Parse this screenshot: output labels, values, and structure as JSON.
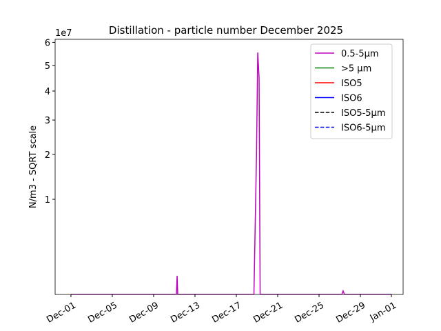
{
  "chart_data": {
    "type": "line",
    "title": "Distillation - particle number December 2025",
    "ylabel": "N/m3 - SQRT scale",
    "y_offset_label": "1e7",
    "yscale": "sqrt",
    "x": [
      0,
      10.2,
      10.27,
      10.33,
      17.7,
      17.95,
      18.07,
      18.2,
      18.3,
      26.2,
      26.33,
      26.45,
      31
    ],
    "series": [
      {
        "name": "0.5-5µm",
        "color": "#bf00bf",
        "dash": false,
        "values": [
          150000,
          150000,
          860000,
          150000,
          150000,
          20000000,
          55500000,
          45000000,
          150000,
          150000,
          234000,
          150000,
          150000
        ]
      },
      {
        "name": ">5 µm",
        "color": "#008000",
        "dash": false,
        "values": [
          null,
          null,
          null,
          null,
          null,
          null,
          null,
          null,
          null,
          null,
          null,
          null,
          null
        ]
      },
      {
        "name": "ISO5",
        "color": "#ff0000",
        "dash": false,
        "values": [
          null,
          null,
          null,
          null,
          null,
          null,
          null,
          null,
          null,
          null,
          null,
          null,
          null
        ]
      },
      {
        "name": "ISO6",
        "color": "#0000ff",
        "dash": false,
        "values": [
          null,
          null,
          null,
          null,
          null,
          null,
          null,
          null,
          null,
          null,
          null,
          null,
          null
        ]
      },
      {
        "name": "ISO5-5µm",
        "color": "#000000",
        "dash": true,
        "values": [
          null,
          null,
          null,
          null,
          null,
          null,
          null,
          null,
          null,
          null,
          null,
          null,
          null
        ]
      },
      {
        "name": "ISO6-5µm",
        "color": "#0000ff",
        "dash": true,
        "values": [
          null,
          null,
          null,
          null,
          null,
          null,
          null,
          null,
          null,
          null,
          null,
          null,
          null
        ]
      }
    ],
    "xlim": [
      -1.53,
      32.13
    ],
    "xticks": [
      {
        "value": 0,
        "label": "Dec-01"
      },
      {
        "value": 4,
        "label": "Dec-05"
      },
      {
        "value": 8,
        "label": "Dec-09"
      },
      {
        "value": 12,
        "label": "Dec-13"
      },
      {
        "value": 16,
        "label": "Dec-17"
      },
      {
        "value": 20,
        "label": "Dec-21"
      },
      {
        "value": 24,
        "label": "Dec-25"
      },
      {
        "value": 28,
        "label": "Dec-29"
      },
      {
        "value": 31,
        "label": "Jan-01"
      }
    ],
    "ylim": [
      146000,
      61400000
    ],
    "yticks": [
      {
        "value": 10000000,
        "label": "1"
      },
      {
        "value": 20000000,
        "label": "2"
      },
      {
        "value": 30000000,
        "label": "3"
      },
      {
        "value": 40000000,
        "label": "4"
      },
      {
        "value": 50000000,
        "label": "5"
      },
      {
        "value": 60000000,
        "label": "6"
      }
    ],
    "legend": "upper right"
  }
}
